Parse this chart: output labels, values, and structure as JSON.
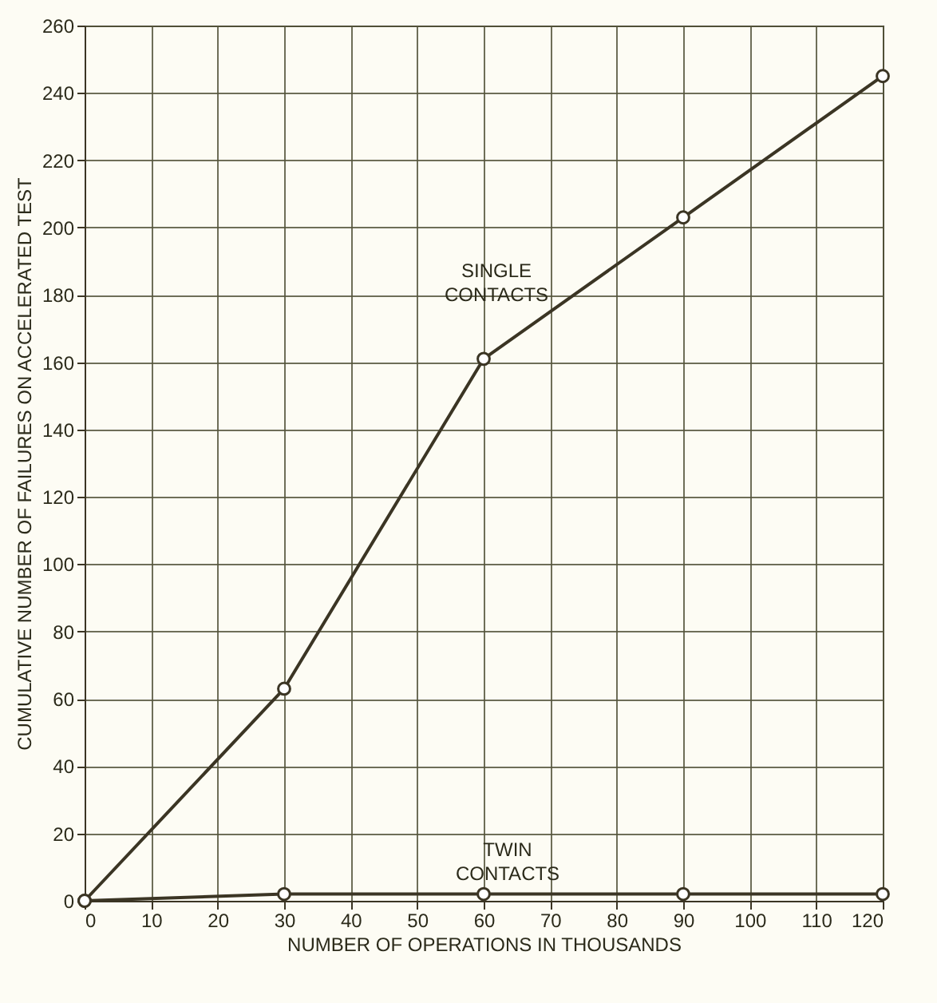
{
  "chart_data": {
    "type": "line",
    "xlabel": "NUMBER OF OPERATIONS IN THOUSANDS",
    "ylabel": "CUMULATIVE NUMBER OF FAILURES ON ACCELERATED TEST",
    "x": [
      0,
      30,
      60,
      90,
      120
    ],
    "series": [
      {
        "name": "SINGLE CONTACTS",
        "color": "#3b3524",
        "values": [
          0,
          63,
          161,
          203,
          245
        ]
      },
      {
        "name": "TWIN CONTACTS",
        "color": "#3b3524",
        "values": [
          0,
          2,
          2,
          2,
          2
        ]
      }
    ],
    "xlim": [
      0,
      120
    ],
    "xticks": [
      0,
      10,
      20,
      30,
      40,
      50,
      60,
      70,
      80,
      90,
      100,
      110,
      120
    ],
    "ylim": [
      0,
      260
    ],
    "yticks": [
      0,
      20,
      40,
      60,
      80,
      100,
      120,
      140,
      160,
      180,
      200,
      220,
      240,
      260
    ],
    "grid": true,
    "marker": "circle",
    "line_style": "solid",
    "legend": false
  }
}
